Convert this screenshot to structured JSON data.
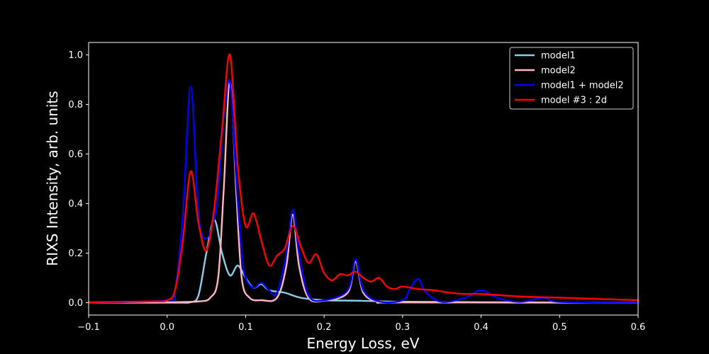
{
  "chart_data": {
    "type": "line",
    "xlabel": "Energy Loss, eV",
    "ylabel": "RIXS Intensity, arb. units",
    "xlim": [
      -0.1,
      0.6
    ],
    "ylim": [
      -0.05,
      1.05
    ],
    "xticks": [
      -0.1,
      0.0,
      0.1,
      0.2,
      0.3,
      0.4,
      0.5,
      0.6
    ],
    "xtick_labels": [
      "−0.1",
      "0.0",
      "0.1",
      "0.2",
      "0.3",
      "0.4",
      "0.5",
      "0.6"
    ],
    "yticks": [
      0.0,
      0.2,
      0.4,
      0.6,
      0.8,
      1.0
    ],
    "ytick_labels": [
      "0.0",
      "0.2",
      "0.4",
      "0.6",
      "0.8",
      "1.0"
    ],
    "grid": false,
    "legend_position": "top-right",
    "background": "#000000",
    "series": [
      {
        "name": "model1",
        "color": "#87ceeb",
        "x": [
          -0.1,
          0.0,
          0.02,
          0.03,
          0.04,
          0.05,
          0.06,
          0.07,
          0.08,
          0.09,
          0.1,
          0.11,
          0.12,
          0.13,
          0.15,
          0.17,
          0.2,
          0.24,
          0.3,
          0.4,
          0.5,
          0.6
        ],
        "y": [
          0.0,
          0.0,
          0.0,
          0.002,
          0.03,
          0.2,
          0.335,
          0.2,
          0.11,
          0.15,
          0.1,
          0.06,
          0.075,
          0.05,
          0.04,
          0.02,
          0.01,
          0.008,
          0.004,
          0.002,
          0.001,
          0.0
        ]
      },
      {
        "name": "model2",
        "color": "#ffb6c1",
        "x": [
          -0.1,
          0.0,
          0.04,
          0.055,
          0.065,
          0.072,
          0.08,
          0.088,
          0.095,
          0.105,
          0.12,
          0.14,
          0.152,
          0.16,
          0.168,
          0.18,
          0.2,
          0.23,
          0.24,
          0.25,
          0.27,
          0.3,
          0.6
        ],
        "y": [
          0.0,
          0.002,
          0.005,
          0.02,
          0.1,
          0.45,
          0.89,
          0.45,
          0.1,
          0.02,
          0.01,
          0.02,
          0.15,
          0.355,
          0.15,
          0.02,
          0.008,
          0.04,
          0.165,
          0.04,
          0.003,
          0.001,
          0.0
        ]
      },
      {
        "name": "model1 + model2",
        "color": "#0000ff",
        "x": [
          -0.1,
          0.0,
          0.01,
          0.02,
          0.03,
          0.04,
          0.05,
          0.06,
          0.065,
          0.072,
          0.08,
          0.088,
          0.095,
          0.1,
          0.11,
          0.12,
          0.13,
          0.14,
          0.152,
          0.16,
          0.168,
          0.18,
          0.2,
          0.23,
          0.24,
          0.25,
          0.27,
          0.3,
          0.31,
          0.32,
          0.33,
          0.35,
          0.38,
          0.4,
          0.42,
          0.45,
          0.48,
          0.5,
          0.6
        ],
        "y": [
          0.0,
          0.01,
          0.05,
          0.35,
          0.87,
          0.35,
          0.26,
          0.34,
          0.45,
          0.75,
          0.89,
          0.5,
          0.2,
          0.1,
          0.06,
          0.08,
          0.05,
          0.04,
          0.2,
          0.375,
          0.2,
          0.03,
          0.01,
          0.05,
          0.175,
          0.05,
          0.005,
          0.01,
          0.06,
          0.095,
          0.04,
          0.003,
          0.02,
          0.05,
          0.02,
          0.003,
          0.02,
          0.003,
          0.0
        ]
      },
      {
        "name": "model #3 : 2d",
        "color": "#ff0000",
        "x": [
          -0.1,
          -0.02,
          0.0,
          0.01,
          0.02,
          0.03,
          0.04,
          0.05,
          0.06,
          0.07,
          0.08,
          0.09,
          0.1,
          0.11,
          0.12,
          0.13,
          0.14,
          0.15,
          0.16,
          0.17,
          0.18,
          0.19,
          0.2,
          0.21,
          0.22,
          0.23,
          0.24,
          0.25,
          0.26,
          0.27,
          0.28,
          0.29,
          0.3,
          0.32,
          0.34,
          0.36,
          0.38,
          0.4,
          0.45,
          0.5,
          0.55,
          0.6
        ],
        "y": [
          0.002,
          0.005,
          0.01,
          0.05,
          0.25,
          0.53,
          0.32,
          0.21,
          0.38,
          0.7,
          1.0,
          0.55,
          0.31,
          0.36,
          0.25,
          0.15,
          0.19,
          0.22,
          0.31,
          0.23,
          0.16,
          0.195,
          0.12,
          0.09,
          0.115,
          0.11,
          0.125,
          0.1,
          0.085,
          0.1,
          0.065,
          0.055,
          0.065,
          0.055,
          0.05,
          0.04,
          0.035,
          0.035,
          0.025,
          0.02,
          0.015,
          0.01
        ]
      }
    ]
  }
}
